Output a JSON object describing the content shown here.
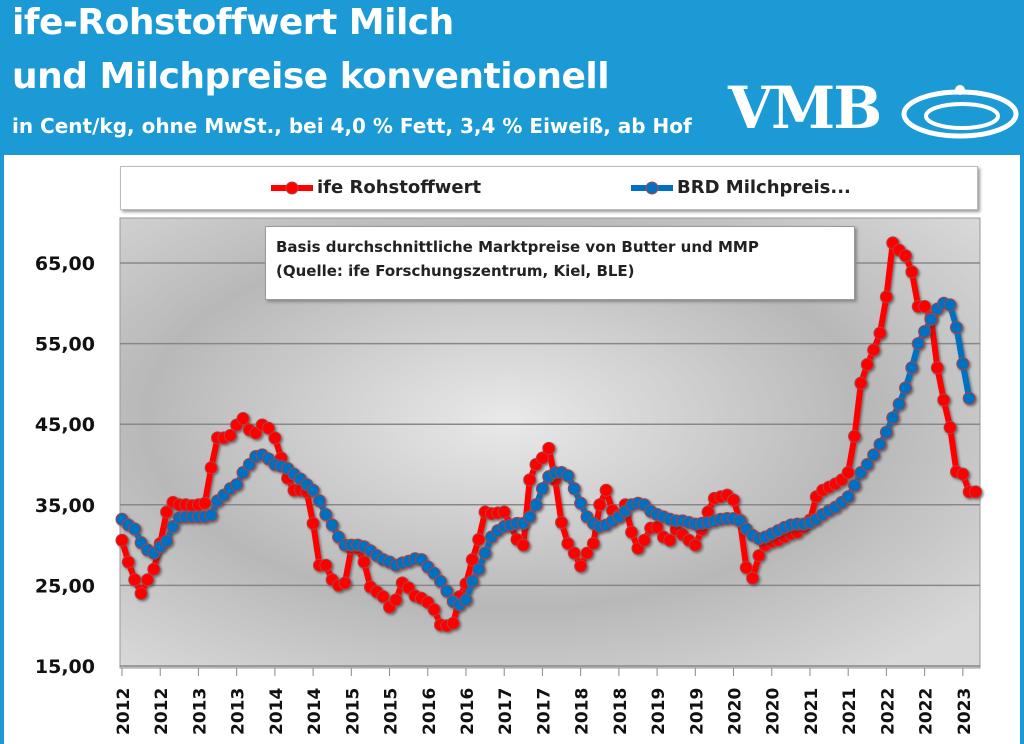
{
  "header": {
    "title_line1": "ife-Rohstoffwert Milch",
    "title_line2": "und Milchpreise konventionell",
    "subtitle": "in Cent/kg, ohne MwSt., bei 4,0 % Fett, 3,4 % Eiweiß, ab Hof",
    "logo": "VMB"
  },
  "colors": {
    "header": "#1b9ad6",
    "ife": "#ff0000",
    "brd": "#0070c0"
  },
  "annotation": {
    "line1": "Basis durchschnittliche Marktpreise von Butter und MMP",
    "line2": "(Quelle: ife Forschungszentrum, Kiel, BLE)"
  },
  "chart_data": {
    "type": "line",
    "title": "",
    "xlabel": "",
    "ylabel": "",
    "ylim": [
      15,
      70
    ],
    "yticks": [
      "15,00",
      "25,00",
      "35,00",
      "45,00",
      "55,00",
      "65,00"
    ],
    "ytick_values": [
      15,
      25,
      35,
      45,
      55,
      65
    ],
    "xticks": [
      "2012",
      "2012",
      "2013",
      "2013",
      "2014",
      "2014",
      "2015",
      "2015",
      "2016",
      "2016",
      "2017",
      "2017",
      "2018",
      "2018",
      "2019",
      "2019",
      "2020",
      "2020",
      "2021",
      "2021",
      "2022",
      "2022",
      "2023"
    ],
    "x_start": "2012-01",
    "x_step": "month",
    "grid": "horizontal",
    "legend": "top",
    "series": [
      {
        "name": "ife Rohstoffwert",
        "color": "#ff0000",
        "values": [
          30.6,
          27.9,
          25.7,
          24.0,
          25.7,
          27.0,
          30.2,
          34.1,
          35.3,
          35.0,
          35.0,
          34.9,
          35.0,
          35.2,
          39.6,
          43.3,
          43.3,
          43.6,
          44.9,
          45.7,
          44.3,
          43.9,
          44.9,
          44.5,
          43.3,
          40.8,
          38.3,
          36.8,
          36.8,
          36.6,
          32.7,
          27.5,
          27.5,
          25.7,
          25.0,
          25.3,
          29.6,
          29.6,
          27.9,
          24.8,
          24.2,
          23.6,
          22.3,
          23.2,
          25.3,
          24.7,
          23.7,
          23.4,
          22.9,
          22.0,
          20.1,
          20.0,
          20.3,
          23.6,
          25.2,
          28.2,
          30.7,
          34.1,
          33.9,
          34.0,
          34.1,
          32.5,
          30.7,
          30.0,
          38.1,
          40.0,
          40.8,
          42.0,
          38.1,
          32.8,
          30.2,
          29.0,
          27.4,
          29.0,
          30.2,
          35.0,
          36.8,
          34.3,
          33.7,
          35.0,
          31.6,
          29.6,
          30.6,
          32.1,
          32.2,
          31.0,
          30.6,
          31.9,
          31.3,
          30.6,
          30.0,
          31.9,
          34.1,
          35.8,
          36.0,
          36.2,
          35.6,
          33.1,
          27.2,
          25.9,
          28.7,
          30.0,
          30.4,
          30.6,
          31.0,
          31.4,
          31.6,
          32.2,
          33.1,
          36.0,
          36.8,
          37.2,
          37.6,
          38.1,
          39.0,
          43.5,
          50.1,
          52.4,
          54.2,
          56.3,
          60.8,
          67.5,
          66.6,
          65.9,
          63.9,
          59.6,
          59.6,
          58.2,
          52.0,
          48.0,
          44.6,
          39.1,
          38.8,
          36.6,
          36.6
        ]
      },
      {
        "name": "BRD Milchpreis...",
        "color": "#0070c0",
        "values": [
          33.2,
          32.5,
          32.0,
          30.3,
          29.4,
          29.0,
          29.8,
          30.5,
          32.3,
          33.4,
          33.5,
          33.5,
          33.5,
          33.5,
          33.7,
          35.5,
          36.2,
          37.0,
          37.5,
          39.0,
          40.0,
          41.0,
          41.2,
          40.7,
          40.0,
          39.8,
          39.5,
          38.8,
          38.2,
          37.5,
          36.8,
          35.5,
          33.8,
          32.5,
          31.0,
          30.0,
          30.0,
          30.0,
          29.8,
          29.3,
          28.7,
          28.2,
          27.9,
          27.5,
          27.8,
          28.0,
          28.3,
          28.2,
          27.3,
          26.5,
          25.5,
          24.3,
          23.0,
          22.6,
          23.2,
          25.5,
          27.0,
          29.0,
          31.0,
          31.8,
          32.3,
          32.5,
          32.7,
          32.7,
          33.5,
          35.0,
          37.0,
          38.5,
          39.0,
          39.0,
          38.6,
          37.0,
          35.2,
          33.5,
          32.7,
          32.3,
          32.5,
          33.0,
          33.5,
          34.2,
          35.0,
          35.2,
          35.0,
          34.2,
          33.8,
          33.5,
          33.2,
          33.0,
          33.0,
          32.8,
          32.6,
          32.7,
          32.8,
          33.0,
          33.2,
          33.3,
          33.3,
          33.0,
          32.0,
          31.2,
          30.8,
          31.0,
          31.4,
          31.8,
          32.2,
          32.5,
          32.6,
          32.6,
          32.8,
          33.2,
          33.8,
          34.3,
          34.7,
          35.3,
          36.0,
          37.4,
          39.0,
          40.0,
          41.2,
          42.5,
          44.0,
          45.8,
          47.5,
          49.5,
          52.0,
          55.0,
          56.5,
          58.0,
          59.3,
          60.0,
          59.8,
          57.0,
          52.5,
          48.2
        ]
      }
    ]
  }
}
